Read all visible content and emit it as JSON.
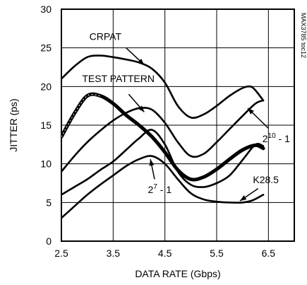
{
  "chart_data": {
    "type": "line",
    "xlabel": "DATA RATE (Gbps)",
    "ylabel": "JITTER (ps)",
    "xlim": [
      2.5,
      7.0
    ],
    "ylim": [
      0,
      30
    ],
    "x_ticks": [
      "2.5",
      "3.5",
      "4.5",
      "5.5",
      "6.5"
    ],
    "y_ticks": [
      "0",
      "5",
      "10",
      "15",
      "20",
      "25",
      "30"
    ],
    "grid": true,
    "watermark": "MAX3785 toc12",
    "series": [
      {
        "name": "CRPAT",
        "points": [
          [
            2.5,
            21.0
          ],
          [
            2.75,
            22.6
          ],
          [
            3.0,
            23.8
          ],
          [
            3.25,
            24.0
          ],
          [
            3.5,
            23.8
          ],
          [
            3.75,
            23.5
          ],
          [
            4.0,
            23.1
          ],
          [
            4.25,
            22.3
          ],
          [
            4.5,
            20.5
          ],
          [
            4.75,
            17.5
          ],
          [
            5.0,
            16.0
          ],
          [
            5.25,
            16.4
          ],
          [
            5.5,
            17.5
          ],
          [
            5.75,
            18.8
          ],
          [
            6.0,
            19.8
          ],
          [
            6.15,
            20.0
          ],
          [
            6.25,
            19.5
          ],
          [
            6.4,
            18.2
          ]
        ]
      },
      {
        "name": "TEST PATTERN",
        "points": [
          [
            2.5,
            13.5
          ],
          [
            2.75,
            16.5
          ],
          [
            3.0,
            18.8
          ],
          [
            3.25,
            18.8
          ],
          [
            3.5,
            17.8
          ],
          [
            3.75,
            16.3
          ],
          [
            4.0,
            15.0
          ],
          [
            4.25,
            13.5
          ],
          [
            4.5,
            11.5
          ],
          [
            4.75,
            9.2
          ],
          [
            5.0,
            8.0
          ],
          [
            5.25,
            8.3
          ],
          [
            5.5,
            9.3
          ],
          [
            5.75,
            10.6
          ],
          [
            6.0,
            11.8
          ],
          [
            6.25,
            12.4
          ],
          [
            6.4,
            12.0
          ]
        ]
      },
      {
        "name": "2¹⁰ - 1",
        "points": [
          [
            2.5,
            9.0
          ],
          [
            2.75,
            11.0
          ],
          [
            3.0,
            12.8
          ],
          [
            3.25,
            14.3
          ],
          [
            3.5,
            15.6
          ],
          [
            3.75,
            16.6
          ],
          [
            4.0,
            17.2
          ],
          [
            4.25,
            17.0
          ],
          [
            4.5,
            15.3
          ],
          [
            4.75,
            12.8
          ],
          [
            5.0,
            11.0
          ],
          [
            5.25,
            11.3
          ],
          [
            5.5,
            12.8
          ],
          [
            5.75,
            14.5
          ],
          [
            6.0,
            16.2
          ],
          [
            6.25,
            17.8
          ],
          [
            6.4,
            18.2
          ]
        ]
      },
      {
        "name": "2⁷ - 1",
        "points": [
          [
            2.5,
            6.0
          ],
          [
            2.75,
            7.0
          ],
          [
            3.0,
            8.0
          ],
          [
            3.25,
            9.2
          ],
          [
            3.5,
            10.3
          ],
          [
            3.75,
            11.8
          ],
          [
            4.0,
            13.3
          ],
          [
            4.25,
            14.4
          ],
          [
            4.5,
            12.5
          ],
          [
            4.75,
            9.0
          ],
          [
            5.0,
            7.3
          ],
          [
            5.25,
            7.0
          ],
          [
            5.5,
            7.5
          ],
          [
            5.75,
            8.5
          ],
          [
            6.0,
            10.5
          ],
          [
            6.25,
            12.5
          ],
          [
            6.4,
            12.3
          ]
        ]
      },
      {
        "name": "K28.5",
        "points": [
          [
            2.5,
            3.0
          ],
          [
            2.75,
            4.5
          ],
          [
            3.0,
            6.0
          ],
          [
            3.25,
            7.3
          ],
          [
            3.5,
            8.5
          ],
          [
            3.75,
            9.7
          ],
          [
            4.0,
            10.6
          ],
          [
            4.25,
            11.0
          ],
          [
            4.5,
            10.0
          ],
          [
            4.75,
            8.0
          ],
          [
            5.0,
            6.2
          ],
          [
            5.25,
            5.4
          ],
          [
            5.5,
            5.1
          ],
          [
            5.75,
            5.0
          ],
          [
            6.0,
            5.0
          ],
          [
            6.2,
            5.3
          ],
          [
            6.4,
            6.0
          ]
        ]
      }
    ],
    "annotations": [
      {
        "text": "CRPAT",
        "label_at": [
          3.35,
          26.0
        ],
        "arrow_from": [
          3.75,
          25.0
        ],
        "arrow_to": [
          4.1,
          22.8
        ]
      },
      {
        "text": "TEST PATTERN",
        "label_at": [
          3.6,
          20.6
        ],
        "arrow_from": [
          3.8,
          19.0
        ],
        "arrow_to": [
          4.1,
          16.7
        ]
      },
      {
        "text_base": "2",
        "text_sup": "10",
        "text_rest": " - 1",
        "label_at": [
          6.65,
          12.8
        ],
        "arrow_from": [
          6.5,
          14.6
        ],
        "arrow_to": [
          6.1,
          17.2
        ]
      },
      {
        "text_base": "2",
        "text_sup": "7",
        "text_rest": " - 1",
        "label_at": [
          4.4,
          6.2
        ],
        "arrow_from": [
          4.3,
          8.0
        ],
        "arrow_to": [
          4.22,
          10.6
        ]
      },
      {
        "text": "K28.5",
        "label_at": [
          6.45,
          7.5
        ],
        "arrow_from": [
          6.3,
          6.8
        ],
        "arrow_to": [
          5.95,
          5.2
        ]
      }
    ]
  }
}
